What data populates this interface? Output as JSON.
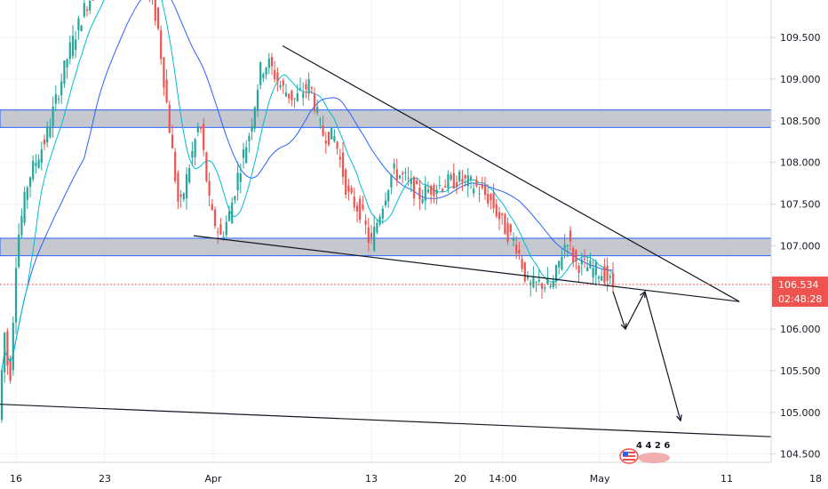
{
  "chart_data": {
    "type": "candlestick",
    "title": "",
    "xlabel": "",
    "ylabel": "",
    "ylim": [
      104.4,
      109.95
    ],
    "y_ticks": [
      "109.500",
      "109.000",
      "108.500",
      "108.000",
      "107.500",
      "107.000",
      "106.500",
      "106.000",
      "105.500",
      "105.000",
      "104.500"
    ],
    "x_ticks": [
      "16",
      "23",
      "Apr",
      "13",
      "20",
      "14:00",
      "May",
      "11",
      "18"
    ],
    "last_price": "106.534",
    "countdown": "02:48:28",
    "resistance_zones": [
      {
        "low": 108.42,
        "high": 108.63
      },
      {
        "low": 106.88,
        "high": 107.09
      }
    ],
    "wedge_upper_line": [
      {
        "t": "Apr 6",
        "price": 109.4
      },
      {
        "t": "May 12",
        "price": 106.33
      }
    ],
    "wedge_lower_line": [
      {
        "t": "Mar 30",
        "price": 107.12
      },
      {
        "t": "May 12",
        "price": 106.33
      }
    ],
    "long_trendline": [
      {
        "t": "Mar 12",
        "price": 105.14
      },
      {
        "t": "May 22",
        "price": 104.75
      }
    ],
    "forecast_path": [
      {
        "t": "May 8",
        "price": 106.45
      },
      {
        "t": "May 9",
        "price": 106.0
      },
      {
        "t": "May 10",
        "price": 106.45
      },
      {
        "t": "May 11",
        "price": 104.9
      }
    ],
    "colors": {
      "up": "#26a69a",
      "down": "#ef5350",
      "ma_fast": "#00bcd4",
      "ma_slow": "#2962ff",
      "zone_fill": "#b2b5be",
      "zone_border": "#2962ff",
      "price_tag": "#ef5350",
      "grid": "#f0f3fa"
    },
    "logo_digits": "4 4 2 6"
  }
}
